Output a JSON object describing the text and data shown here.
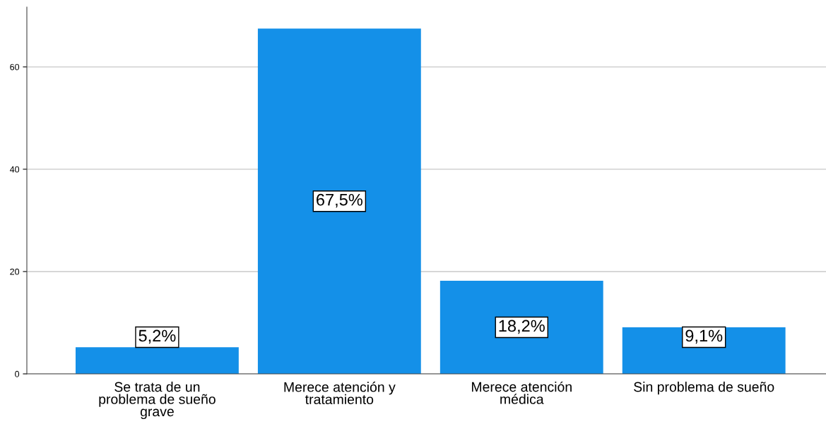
{
  "chart_data": {
    "type": "bar",
    "categories": [
      "Se trata de un\nproblema de sueño\ngrave",
      "Merece atención y\ntratamiento",
      "Merece atención\nmédica",
      "Sin problema de sueño"
    ],
    "values": [
      5.2,
      67.5,
      18.2,
      9.1
    ],
    "value_labels": [
      "5,2%",
      "67,5%",
      "18,2%",
      "9,1%"
    ],
    "color": "#1490e8",
    "ylim": [
      0,
      71.7
    ],
    "yticks": [
      0,
      20,
      40,
      60
    ],
    "grid": "y"
  }
}
